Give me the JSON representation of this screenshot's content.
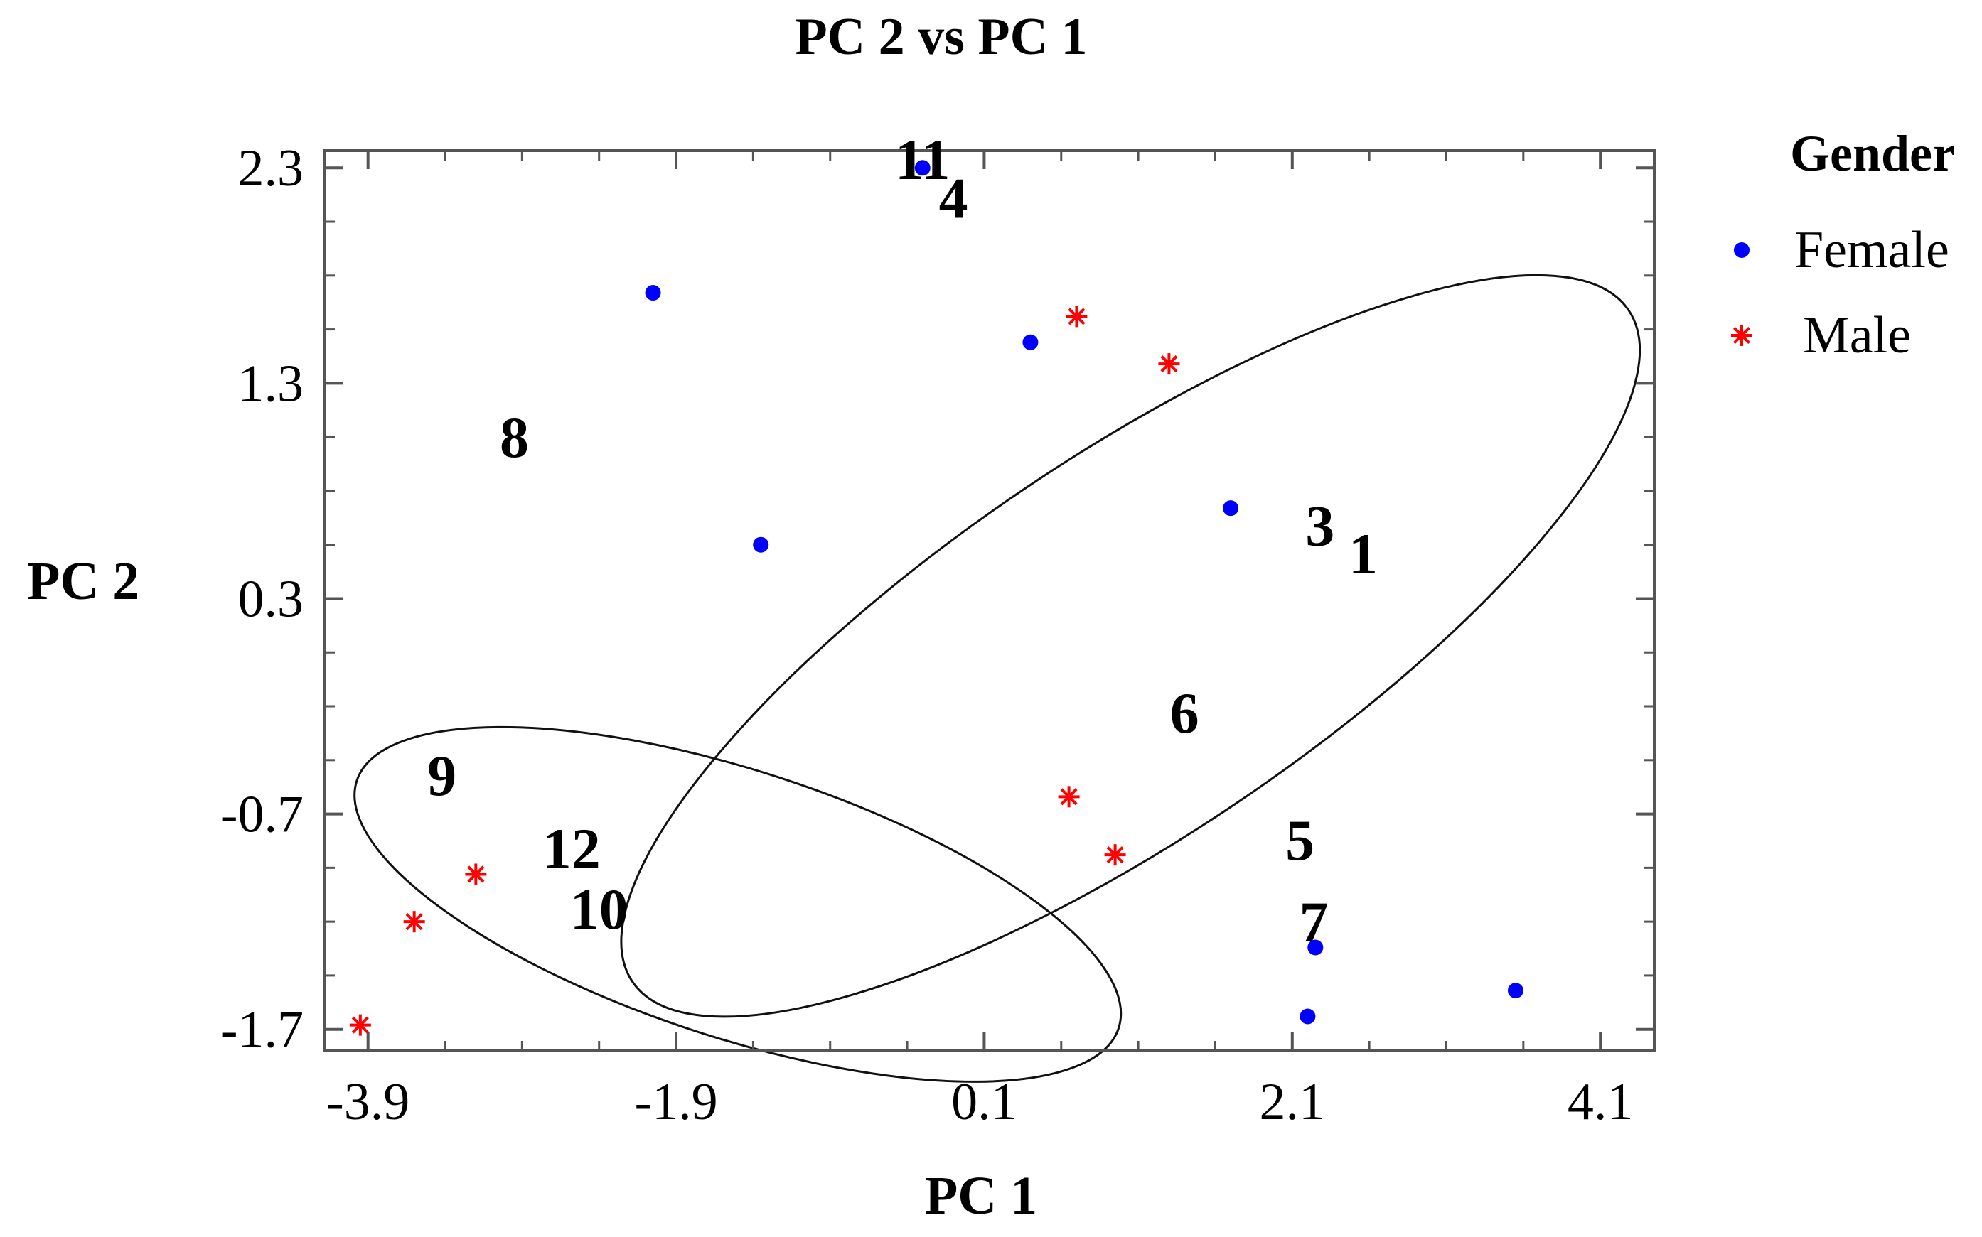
{
  "chart_data": {
    "type": "scatter",
    "title": "PC 2 vs PC 1",
    "xlabel": "PC 1",
    "ylabel": "PC 2",
    "xlim": [
      -4.18,
      4.45
    ],
    "ylim": [
      -1.8,
      2.38
    ],
    "xticks": [
      -3.9,
      -1.9,
      0.1,
      2.1,
      4.1
    ],
    "xtick_labels": [
      "-3.9",
      "-1.9",
      "0.1",
      "2.1",
      "4.1"
    ],
    "yticks": [
      -1.7,
      -0.7,
      0.3,
      1.3,
      2.3
    ],
    "ytick_labels": [
      "-1.7",
      "-0.7",
      "0.3",
      "1.3",
      "2.3"
    ],
    "grid": false,
    "legend": {
      "title": "Gender",
      "position": "right-top"
    },
    "series": [
      {
        "name": "Female",
        "marker": "circle",
        "color": "#0000ff",
        "x": [
          -0.3,
          -2.05,
          0.4,
          -1.35,
          1.7,
          2.25,
          2.2,
          3.55
        ],
        "y": [
          2.3,
          1.72,
          1.49,
          0.55,
          0.72,
          -1.32,
          -1.64,
          -1.52
        ]
      },
      {
        "name": "Male",
        "marker": "asterisk",
        "color": "#ff0000",
        "x": [
          0.7,
          1.3,
          0.65,
          0.95,
          -3.2,
          -3.6,
          -3.95
        ],
        "y": [
          1.61,
          1.39,
          -0.62,
          -0.89,
          -0.98,
          -1.2,
          -1.68
        ]
      }
    ],
    "annotations": [
      {
        "text": "11",
        "x": -0.3,
        "y": 2.34
      },
      {
        "text": "4",
        "x": -0.1,
        "y": 2.16
      },
      {
        "text": "8",
        "x": -2.95,
        "y": 1.05
      },
      {
        "text": "3",
        "x": 2.28,
        "y": 0.64
      },
      {
        "text": "1",
        "x": 2.56,
        "y": 0.51
      },
      {
        "text": "6",
        "x": 1.4,
        "y": -0.23
      },
      {
        "text": "9",
        "x": -3.42,
        "y": -0.52
      },
      {
        "text": "12",
        "x": -2.58,
        "y": -0.86
      },
      {
        "text": "5",
        "x": 2.15,
        "y": -0.82
      },
      {
        "text": "10",
        "x": -2.4,
        "y": -1.14
      },
      {
        "text": "7",
        "x": 2.24,
        "y": -1.2
      }
    ],
    "ellipses": [
      {
        "group": "Female",
        "cx": 1.05,
        "cy": 0.08,
        "rx": 3.9,
        "ry": 0.88,
        "rotation_deg": -34
      },
      {
        "group": "Male",
        "cx": -1.5,
        "cy": -1.12,
        "rx": 2.6,
        "ry": 0.62,
        "rotation_deg": 18
      }
    ]
  }
}
